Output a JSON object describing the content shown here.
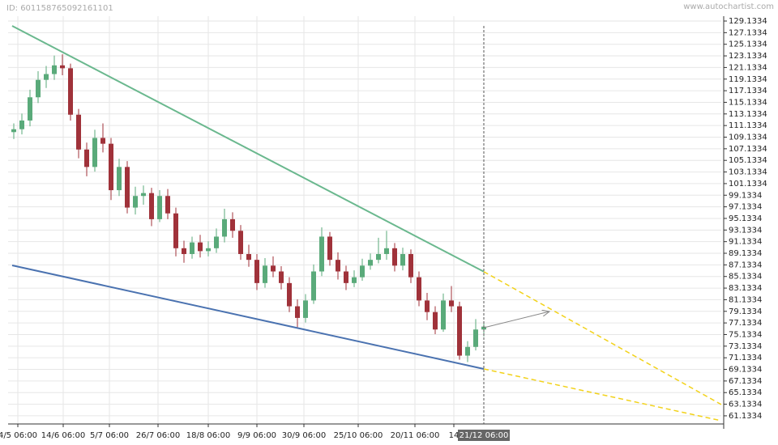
{
  "chart_data": {
    "type": "candlestick",
    "id_label": "ID: 601158765092161101",
    "watermark": "www.autochartist.com",
    "up_color": "#5aaa7a",
    "down_color": "#a0323a",
    "open": [
      110,
      110.5,
      112,
      116,
      119,
      120,
      121.5,
      121,
      113,
      107,
      104,
      109,
      108,
      100,
      104,
      97,
      99,
      99.5,
      95,
      99,
      96,
      90,
      89,
      91,
      89.5,
      90,
      92,
      95,
      93,
      89,
      88,
      84,
      87,
      86,
      84,
      80,
      78,
      81,
      86,
      92,
      88,
      86,
      84,
      85,
      87,
      88,
      89,
      90,
      87,
      89,
      85,
      81,
      79,
      76,
      81,
      80,
      71.5,
      73,
      76
    ],
    "high": [
      111.5,
      113.2,
      117.3,
      120.5,
      121.4,
      123.2,
      123.4,
      121.8,
      114,
      108.2,
      110.4,
      111.5,
      109,
      105.4,
      105,
      100.6,
      100.8,
      100.4,
      100,
      100.2,
      97,
      91.3,
      92,
      92.3,
      91.2,
      93.4,
      96.8,
      96.2,
      94,
      90.6,
      89,
      88.3,
      88.6,
      86.9,
      85,
      81.2,
      82.1,
      87.2,
      93.6,
      92.8,
      89.3,
      87,
      86.2,
      88.2,
      89.1,
      91.8,
      93,
      90.9,
      90.1,
      89.8,
      86,
      82.3,
      80,
      82.2,
      83.5,
      80.8,
      74,
      77.8,
      77.2
    ],
    "low": [
      108.8,
      109.6,
      111,
      115,
      117.6,
      119,
      119.8,
      112,
      105.5,
      102.4,
      103.2,
      106.5,
      98.3,
      99,
      96,
      95.8,
      97.5,
      93.8,
      94.5,
      95,
      88.6,
      87.5,
      88.2,
      88.4,
      88.6,
      89.2,
      91,
      91.8,
      88,
      86.8,
      82.8,
      83.2,
      85,
      82.9,
      79,
      76.4,
      77.2,
      80.4,
      85.2,
      87,
      84.6,
      82.8,
      83.3,
      84.4,
      86.3,
      87.4,
      88,
      86,
      86.2,
      84,
      80,
      77.6,
      75.2,
      75.6,
      79,
      70.8,
      70.4,
      72.4,
      74.8
    ],
    "close": [
      110.5,
      112,
      116,
      119,
      120,
      121.5,
      121,
      113,
      107,
      104,
      109,
      108,
      100,
      104,
      97,
      99,
      99.5,
      95,
      99,
      96,
      90,
      89,
      91,
      89.5,
      90,
      92,
      95,
      93,
      89,
      88,
      84,
      87,
      86,
      84,
      80,
      78,
      81,
      86,
      92,
      88,
      86,
      84,
      85,
      87,
      88,
      89,
      90,
      87,
      89,
      85,
      81,
      79,
      76,
      81,
      80,
      71.5,
      73,
      76,
      76.5
    ],
    "xlim": [
      -0.7,
      87.3
    ],
    "xticks": [
      {
        "value": 0.5,
        "label": "4/5 06:00"
      },
      {
        "value": 6.1,
        "label": "14/6 06:00"
      },
      {
        "value": 11.8,
        "label": "5/7 06:00"
      },
      {
        "value": 17.8,
        "label": "26/7 06:00"
      },
      {
        "value": 24,
        "label": "18/8 06:00"
      },
      {
        "value": 30,
        "label": "9/9 06:00"
      },
      {
        "value": 35.8,
        "label": "30/9 06:00"
      },
      {
        "value": 42.5,
        "label": "25/10 06:00"
      },
      {
        "value": 49.5,
        "label": "20/11 06:00"
      },
      {
        "value": 54.3,
        "label": "14"
      }
    ],
    "cursor": {
      "x": 58,
      "label": "21/12 06:00"
    },
    "ylim": [
      59.73,
      129.97
    ],
    "yticks": [
      61.1334,
      63.1334,
      65.1334,
      67.1334,
      69.1334,
      71.1334,
      73.1334,
      75.1334,
      77.1334,
      79.1334,
      81.1334,
      83.1334,
      85.1334,
      87.1334,
      89.1334,
      91.1334,
      93.1334,
      95.1334,
      97.1334,
      99.1334,
      101.1334,
      103.1334,
      105.1334,
      107.1334,
      109.1334,
      111.1334,
      113.1334,
      115.1334,
      117.1334,
      119.1334,
      121.1334,
      123.1334,
      125.1334,
      127.1334,
      129.1334
    ],
    "grid": true,
    "lines": [
      {
        "color": "#6ab88e",
        "dashed": false,
        "x": [
          -0.2,
          58
        ],
        "values": [
          128.3,
          85.96
        ]
      },
      {
        "color": "#4a72b0",
        "dashed": false,
        "x": [
          -0.2,
          58
        ],
        "values": [
          87.05,
          69.21
        ]
      },
      {
        "color": "#f2d21a",
        "dashed": true,
        "x": [
          58,
          87.3
        ],
        "values": [
          85.96,
          63.08
        ]
      },
      {
        "color": "#f2d21a",
        "dashed": true,
        "x": [
          58,
          87.3
        ],
        "values": [
          69.21,
          60.29
        ]
      },
      {
        "color": "#888888",
        "dashed": false,
        "arrow": true,
        "x": [
          58,
          66.1
        ],
        "values": [
          76.32,
          79.1
        ]
      }
    ]
  }
}
